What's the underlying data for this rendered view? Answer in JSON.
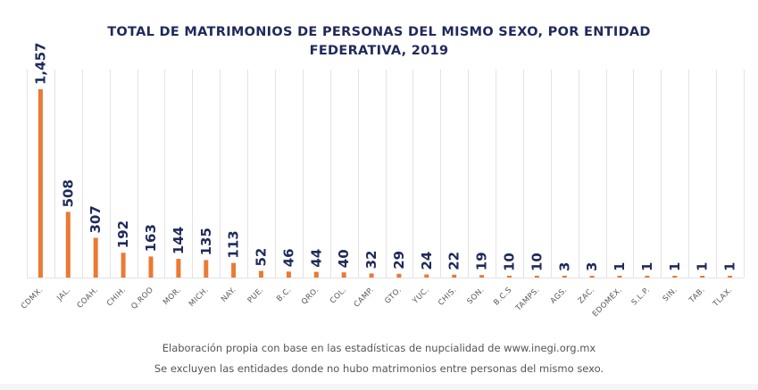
{
  "chart_data": {
    "type": "bar",
    "title": "TOTAL DE MATRIMONIOS DE PERSONAS DEL MISMO SEXO, POR ENTIDAD FEDERATIVA, 2019",
    "title_lines": [
      "TOTAL DE MATRIMONIOS DE PERSONAS DEL MISMO SEXO, POR ENTIDAD",
      "FEDERATIVA, 2019"
    ],
    "categories": [
      "CDMX.",
      "JAL.",
      "COAH.",
      "CHIH.",
      "Q.ROO",
      "MOR.",
      "MICH.",
      "NAY.",
      "PUE.",
      "B.C.",
      "QRO.",
      "COL.",
      "CAMP.",
      "GTO.",
      "YUC.",
      "CHIS.",
      "SON.",
      "B.C.S",
      "TAMPS.",
      "AGS.",
      "ZAC.",
      "EDOMÉX.",
      "S.L.P.",
      "SIN.",
      "TAB.",
      "TLAX."
    ],
    "values": [
      1457,
      508,
      307,
      192,
      163,
      144,
      135,
      113,
      52,
      46,
      44,
      40,
      32,
      29,
      24,
      22,
      19,
      10,
      10,
      3,
      3,
      1,
      1,
      1,
      1,
      1
    ],
    "value_labels": [
      "1,457",
      "508",
      "307",
      "192",
      "163",
      "144",
      "135",
      "113",
      "52",
      "46",
      "44",
      "40",
      "32",
      "29",
      "24",
      "22",
      "19",
      "10",
      "10",
      "3",
      "3",
      "1",
      "1",
      "1",
      "1",
      "1"
    ],
    "xlabel": "",
    "ylabel": "",
    "ylim": [
      0,
      1500
    ],
    "grid": "vertical",
    "bar_color": "#ea7a34",
    "label_color": "#1f2a5a"
  },
  "footnotes": {
    "line1": "Elaboración propia con base en las estadísticas de nupcialidad de www.inegi.org.mx",
    "line2": "Se excluyen las entidades donde no hubo matrimonios entre personas del mismo sexo."
  }
}
